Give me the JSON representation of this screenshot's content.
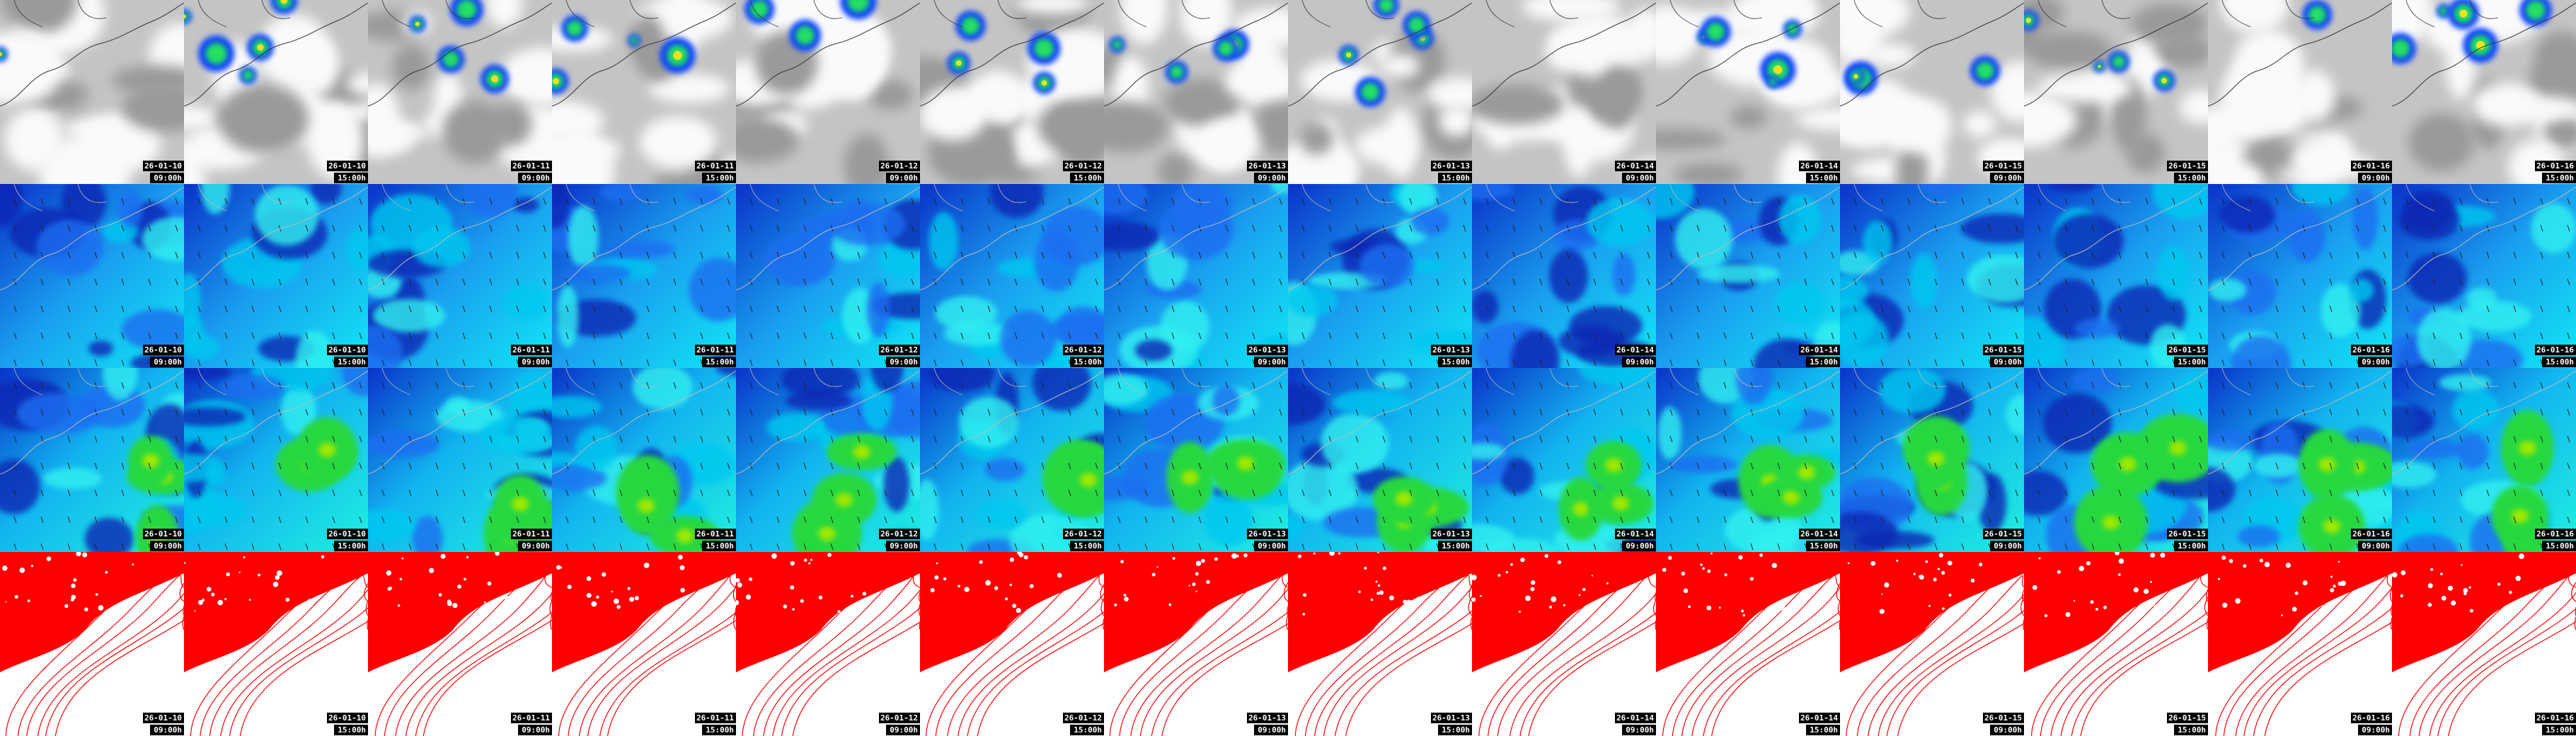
{
  "panels": [
    {
      "date": "26-01-10",
      "time": "09:00h"
    },
    {
      "date": "26-01-10",
      "time": "15:00h"
    },
    {
      "date": "26-01-11",
      "time": "09:00h"
    },
    {
      "date": "26-01-11",
      "time": "15:00h"
    },
    {
      "date": "26-01-12",
      "time": "09:00h"
    },
    {
      "date": "26-01-12",
      "time": "15:00h"
    },
    {
      "date": "26-01-13",
      "time": "09:00h"
    },
    {
      "date": "26-01-13",
      "time": "15:00h"
    },
    {
      "date": "26-01-14",
      "time": "09:00h"
    },
    {
      "date": "26-01-14",
      "time": "15:00h"
    },
    {
      "date": "26-01-15",
      "time": "09:00h"
    },
    {
      "date": "26-01-15",
      "time": "15:00h"
    },
    {
      "date": "26-01-16",
      "time": "09:00h"
    },
    {
      "date": "26-01-16",
      "time": "15:00h"
    }
  ]
}
